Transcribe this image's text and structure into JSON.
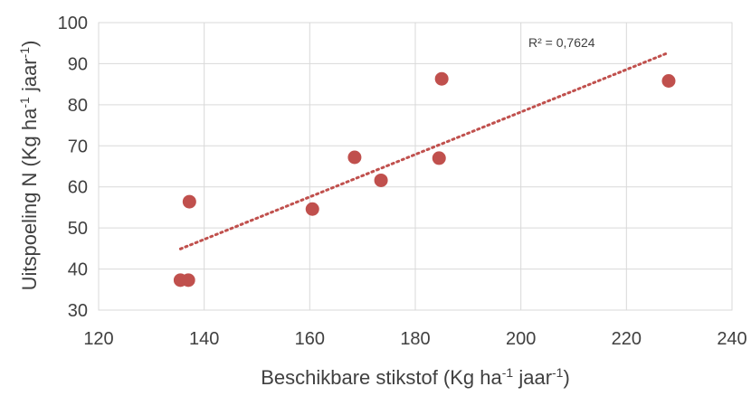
{
  "chart_data": {
    "type": "scatter",
    "xlabel": "Beschikbare stikstof (Kg ha-1 jaar-1)",
    "xlabel_parts": [
      "Beschikbare stikstof (Kg ha",
      "-1",
      " jaar",
      "-1",
      ")"
    ],
    "ylabel": "Uitspoeling N (Kg ha-1 jaar-1)",
    "ylabel_parts": [
      "Uitspoeling N (Kg ha",
      "-1",
      " jaar",
      "-1",
      ")"
    ],
    "xlim": [
      120,
      240
    ],
    "ylim": [
      30,
      100
    ],
    "xticks": [
      120,
      140,
      160,
      180,
      200,
      220,
      240
    ],
    "yticks": [
      30,
      40,
      50,
      60,
      70,
      80,
      90,
      100
    ],
    "grid": true,
    "legend": "none",
    "point_color": "#c0504d",
    "trendline_color": "#c0504d",
    "points": [
      {
        "x": 135.5,
        "y": 37.3
      },
      {
        "x": 137.0,
        "y": 37.3
      },
      {
        "x": 137.2,
        "y": 56.4
      },
      {
        "x": 160.5,
        "y": 54.6
      },
      {
        "x": 168.5,
        "y": 67.2
      },
      {
        "x": 173.5,
        "y": 61.6
      },
      {
        "x": 184.5,
        "y": 67.0
      },
      {
        "x": 185.0,
        "y": 86.3
      },
      {
        "x": 228.0,
        "y": 85.8
      }
    ],
    "trendline": {
      "type": "linear",
      "x": [
        135.5,
        228.0
      ],
      "y": [
        44.9,
        92.7
      ],
      "label": "R² = 0,7624"
    }
  }
}
